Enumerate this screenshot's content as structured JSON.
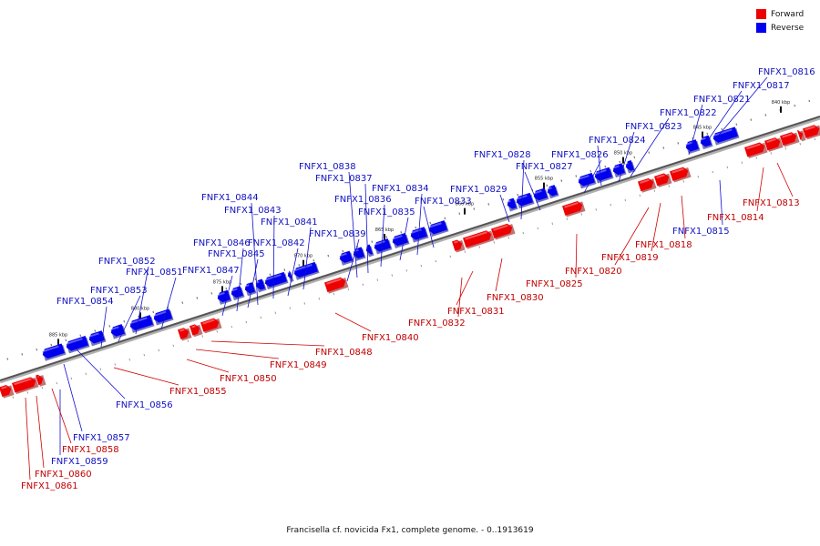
{
  "legend": {
    "forward_label": "Forward",
    "reverse_label": "Reverse",
    "forward_color": "#ee0000",
    "reverse_color": "#0000ee"
  },
  "caption": "Francisella cf. novicida Fx1, complete genome. - 0..1913619",
  "scale_labels": [
    "885 kbp",
    "880 kbp",
    "875 kbp",
    "870 kbp",
    "865 kbp",
    "860 kbp",
    "855 kbp",
    "850 kbp",
    "845 kbp",
    "840 kbp"
  ],
  "genes": [
    {
      "name": "FNFX1_0816",
      "strand": "reverse"
    },
    {
      "name": "FNFX1_0817",
      "strand": "reverse"
    },
    {
      "name": "FNFX1_0821",
      "strand": "reverse"
    },
    {
      "name": "FNFX1_0822",
      "strand": "reverse"
    },
    {
      "name": "FNFX1_0823",
      "strand": "reverse"
    },
    {
      "name": "FNFX1_0824",
      "strand": "reverse"
    },
    {
      "name": "FNFX1_0826",
      "strand": "reverse"
    },
    {
      "name": "FNFX1_0827",
      "strand": "reverse"
    },
    {
      "name": "FNFX1_0828",
      "strand": "reverse"
    },
    {
      "name": "FNFX1_0829",
      "strand": "reverse"
    },
    {
      "name": "FNFX1_0833",
      "strand": "reverse"
    },
    {
      "name": "FNFX1_0834",
      "strand": "reverse"
    },
    {
      "name": "FNFX1_0835",
      "strand": "reverse"
    },
    {
      "name": "FNFX1_0836",
      "strand": "reverse"
    },
    {
      "name": "FNFX1_0837",
      "strand": "reverse"
    },
    {
      "name": "FNFX1_0838",
      "strand": "reverse"
    },
    {
      "name": "FNFX1_0839",
      "strand": "reverse"
    },
    {
      "name": "FNFX1_0841",
      "strand": "reverse"
    },
    {
      "name": "FNFX1_0842",
      "strand": "reverse"
    },
    {
      "name": "FNFX1_0843",
      "strand": "reverse"
    },
    {
      "name": "FNFX1_0844",
      "strand": "reverse"
    },
    {
      "name": "FNFX1_0845",
      "strand": "reverse"
    },
    {
      "name": "FNFX1_0846",
      "strand": "reverse"
    },
    {
      "name": "FNFX1_0847",
      "strand": "reverse"
    },
    {
      "name": "FNFX1_0851",
      "strand": "reverse"
    },
    {
      "name": "FNFX1_0852",
      "strand": "reverse"
    },
    {
      "name": "FNFX1_0853",
      "strand": "reverse"
    },
    {
      "name": "FNFX1_0854",
      "strand": "reverse"
    },
    {
      "name": "FNFX1_0856",
      "strand": "reverse"
    },
    {
      "name": "FNFX1_0857",
      "strand": "reverse"
    },
    {
      "name": "FNFX1_0859",
      "strand": "reverse"
    },
    {
      "name": "FNFX1_0815",
      "strand": "reverse"
    },
    {
      "name": "FNFX1_0813",
      "strand": "forward"
    },
    {
      "name": "FNFX1_0814",
      "strand": "forward"
    },
    {
      "name": "FNFX1_0818",
      "strand": "forward"
    },
    {
      "name": "FNFX1_0819",
      "strand": "forward"
    },
    {
      "name": "FNFX1_0820",
      "strand": "forward"
    },
    {
      "name": "FNFX1_0825",
      "strand": "forward"
    },
    {
      "name": "FNFX1_0830",
      "strand": "forward"
    },
    {
      "name": "FNFX1_0831",
      "strand": "forward"
    },
    {
      "name": "FNFX1_0832",
      "strand": "forward"
    },
    {
      "name": "FNFX1_0840",
      "strand": "forward"
    },
    {
      "name": "FNFX1_0848",
      "strand": "forward"
    },
    {
      "name": "FNFX1_0849",
      "strand": "forward"
    },
    {
      "name": "FNFX1_0850",
      "strand": "forward"
    },
    {
      "name": "FNFX1_0855",
      "strand": "forward"
    },
    {
      "name": "FNFX1_0858",
      "strand": "forward"
    },
    {
      "name": "FNFX1_0860",
      "strand": "forward"
    },
    {
      "name": "FNFX1_0861",
      "strand": "forward"
    }
  ]
}
